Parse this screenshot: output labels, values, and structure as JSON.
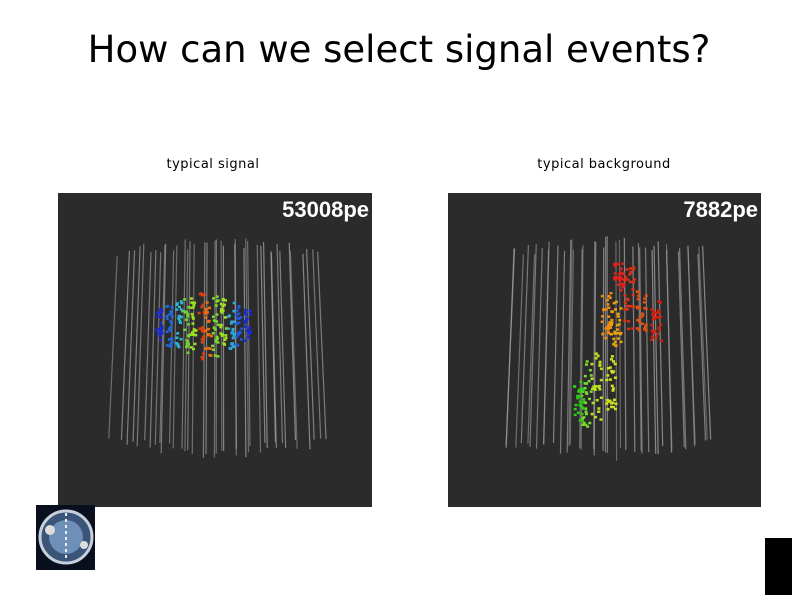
{
  "title": "How can we select signal events?",
  "panels": [
    {
      "caption": "typical signal",
      "label": "53008pe"
    },
    {
      "caption": "typical background",
      "label": "7882pe"
    }
  ]
}
